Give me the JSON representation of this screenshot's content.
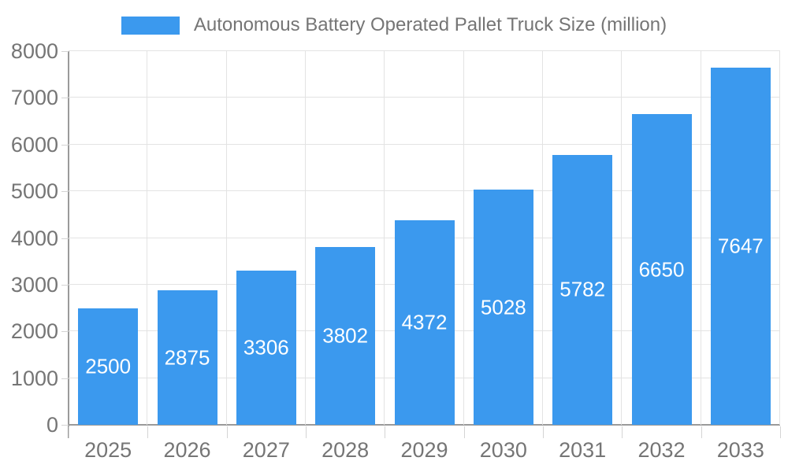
{
  "legend": {
    "label": "Autonomous Battery Operated Pallet Truck Size (million)"
  },
  "chart_data": {
    "type": "bar",
    "title": "Autonomous Battery Operated Pallet Truck Size (million)",
    "categories": [
      "2025",
      "2026",
      "2027",
      "2028",
      "2029",
      "2030",
      "2031",
      "2032",
      "2033"
    ],
    "values": [
      2500,
      2875,
      3306,
      3802,
      4372,
      5028,
      5782,
      6650,
      7647
    ],
    "xlabel": "",
    "ylabel": "",
    "ylim": [
      0,
      8000
    ],
    "yticks": [
      0,
      1000,
      2000,
      3000,
      4000,
      5000,
      6000,
      7000,
      8000
    ],
    "grid": true,
    "legend_position": "top-center",
    "bar_color": "#3B99EE",
    "bar_label_color": "#FFFFFF",
    "axis_text_color": "#757575"
  }
}
